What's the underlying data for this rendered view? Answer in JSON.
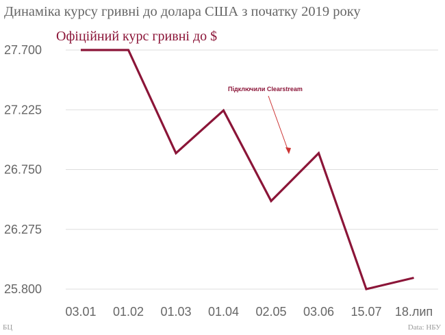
{
  "title": "Динаміка курсу гривні до долара США з початку 2019 року",
  "footer": {
    "left": "БЦ",
    "right": "Data: НБУ"
  },
  "colors": {
    "series": "#8b1538",
    "grid": "#dddddd",
    "text": "#666666",
    "annotation_arrow": "#cc3333"
  },
  "chart_data": {
    "type": "line",
    "title": "Динаміка курсу гривні до долара США з початку 2019 року",
    "categories": [
      "03.01",
      "01.02",
      "01.03",
      "01.04",
      "02.05",
      "03.06",
      "15.07",
      "18.лип"
    ],
    "series": [
      {
        "name": "Офіційний курс гривні до $",
        "values": [
          27.7,
          27.7,
          26.88,
          27.22,
          26.5,
          26.88,
          25.8,
          25.89
        ]
      }
    ],
    "y_ticks": [
      "27.700",
      "27.225",
      "26.750",
      "26.275",
      "25.800"
    ],
    "ylim": [
      25.8,
      27.7
    ],
    "grid": true,
    "annotation": {
      "text": "Підключили Clearstream",
      "points_to_category": "02.05"
    }
  }
}
